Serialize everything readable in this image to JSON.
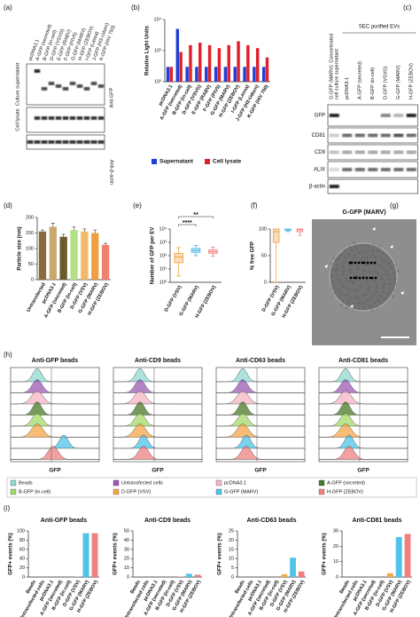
{
  "panel_labels": [
    "(a)",
    "(b)",
    "(c)",
    "(d)",
    "(e)",
    "(f)",
    "(g)",
    "(h)",
    "(i)"
  ],
  "blot_a": {
    "lanes": [
      "pcDNA3.1",
      "A-GFP (secreted)",
      "B-GFP (in-cell)",
      "D-GFP (VSVG)",
      "E-GFP (RABV)",
      "F-GFP (PIV5)",
      "G-GFP (MARV)",
      "H-GFP (ZEBOV)",
      "I-GFP (Lassa)",
      "J-GFP (H3-Udorn)",
      "K-GFP (HIV 750)"
    ],
    "rows": [
      "Culture supernatant",
      "Cell lysate"
    ],
    "antibodies": [
      "Anti-GFP",
      "Anti-β-actin"
    ]
  },
  "blot_c": {
    "lanes": [
      [
        "G-GFP (MARV): Concentrated",
        "cell culture supernatant"
      ],
      "pcDNA3.1",
      "A-GFP (secreted)",
      "B-GFP (in-cell)",
      "D-GFP (VSVG)",
      "G-GFP (MARV)",
      "H-GFP (ZEBOV)"
    ],
    "group": "SEC purified EVs",
    "rows": [
      "GFP",
      "CD81",
      "CD9",
      "ALIX",
      "β-actin"
    ]
  },
  "image_g": {
    "title": "G-GFP (MARV)"
  },
  "flow_cytometry": {
    "titles": [
      "Anti-GFP beads",
      "Anti-CD9 beads",
      "Anti-CD63 beads",
      "Anti-CD81 beads"
    ],
    "x_label": "GFP",
    "legend": [
      {
        "name": "Beads",
        "color": "#8fd9d0"
      },
      {
        "name": "Untransfected cells",
        "color": "#9b59b6"
      },
      {
        "name": "pcDNA3.1",
        "color": "#f4b6c2"
      },
      {
        "name": "A-GFP (secreted)",
        "color": "#4a7a2a"
      },
      {
        "name": "B-GFP (in-cell)",
        "color": "#a6d96a"
      },
      {
        "name": "D-GFP (VSV)",
        "color": "#f5a64a"
      },
      {
        "name": "G-GFP (MARV)",
        "color": "#4fc3e8"
      },
      {
        "name": "H-GFP (ZEBOV)",
        "color": "#f08080"
      }
    ]
  },
  "chart_data": [
    {
      "type": "bar",
      "y_label": "Relative Light Units",
      "log_scale": true,
      "categories": [
        "pcDNA3.1",
        "A-GFP (secreted)",
        "B-GFP (in-cell)",
        "D-GFP (VSVG)",
        "E-GFP (RABV)",
        "F-GFP (PIV5)",
        "G-GFP (MARV)",
        "H-GFP (ZEBOV)",
        "I-GFP (Lassa)",
        "J-GFP (H3-Udorn)",
        "K-GFP (HIV 750)"
      ],
      "series": [
        {
          "name": "Supernatant",
          "color": "#1f3fd6",
          "values": [
            300,
            5000,
            300,
            300,
            300,
            300,
            300,
            300,
            300,
            300,
            300
          ]
        },
        {
          "name": "Cell lysate",
          "color": "#e0202a",
          "values": [
            300,
            900,
            1500,
            1800,
            1500,
            1200,
            1500,
            2000,
            1500,
            1200,
            600
          ]
        }
      ],
      "ylim": [
        100,
        10000
      ],
      "yticks": [
        {
          "value": 100,
          "label": "10²"
        },
        {
          "value": 1000,
          "label": "10³"
        },
        {
          "value": 10000,
          "label": "10⁴"
        }
      ]
    },
    {
      "type": "bar",
      "y_label": "Particle size (nm)",
      "categories": [
        "Untransfected",
        "pcDNA3.1",
        "A-GFP (secreted)",
        "B-GFP (in-cell)",
        "D-GFP (VSV)",
        "G-GFP (MARV)",
        "H-GFP (ZEBOV)"
      ],
      "values": [
        155,
        170,
        138,
        160,
        155,
        150,
        112
      ],
      "errors": [
        5,
        12,
        8,
        10,
        8,
        10,
        5
      ],
      "colors": [
        "#8b6a3e",
        "#c9a96e",
        "#6b5a2a",
        "#b5e08a",
        "#f5b866",
        "#f0a040",
        "#f08070"
      ],
      "ylim": [
        0,
        200
      ],
      "yticks": [
        0,
        50,
        100,
        150,
        200
      ]
    },
    {
      "type": "box",
      "y_label": "Number of GFP per EV",
      "log_scale": true,
      "categories": [
        "D-GFP (VSV)",
        "G-GFP (MARV)",
        "H-GFP (ZEBOV)"
      ],
      "boxes": [
        {
          "min": 3,
          "q1": 30,
          "median": 80,
          "q3": 150,
          "max": 400
        },
        {
          "min": 100,
          "q1": 180,
          "median": 250,
          "q3": 350,
          "max": 600
        },
        {
          "min": 90,
          "q1": 150,
          "median": 200,
          "q3": 280,
          "max": 450
        }
      ],
      "colors": [
        "#f0a040",
        "#4fb3e8",
        "#f08080"
      ],
      "annotations": [
        "**",
        "****"
      ],
      "ylim": [
        1,
        10000
      ],
      "yticks": [
        {
          "value": 1,
          "label": "10⁰"
        },
        {
          "value": 10,
          "label": "10¹"
        },
        {
          "value": 100,
          "label": "10²"
        },
        {
          "value": 1000,
          "label": "10³"
        },
        {
          "value": 10000,
          "label": "10⁴"
        }
      ]
    },
    {
      "type": "box",
      "y_label": "% free GFP",
      "categories": [
        "D-GFP (VSV)",
        "G-GFP (MARV)",
        "H-GFP (ZEBOV)"
      ],
      "boxes": [
        {
          "min": 0,
          "q1": 75,
          "median": 95,
          "q3": 100,
          "max": 100
        },
        {
          "min": 95,
          "q1": 97,
          "median": 99,
          "q3": 100,
          "max": 100
        },
        {
          "min": 88,
          "q1": 95,
          "median": 99,
          "q3": 100,
          "max": 100
        }
      ],
      "colors": [
        "#f0a040",
        "#4fb3e8",
        "#f08080"
      ],
      "ylim": [
        0,
        100
      ],
      "yticks": [
        0,
        50,
        100
      ]
    },
    {
      "type": "bar",
      "title": "Anti-GFP beads",
      "y_label": "GFP+ events (%)",
      "categories": [
        "Beads",
        "Untransfected cells",
        "pcDNA3.1",
        "A-GFP (secreted)",
        "B-GFP (in-cell)",
        "D-GFP (VSV)",
        "G-GFP (MARV)",
        "H-GFP (ZEBOV)"
      ],
      "values": [
        0,
        0,
        0,
        0,
        0,
        0.5,
        95,
        95
      ],
      "colors": [
        "#8fd9d0",
        "#9b59b6",
        "#f4b6c2",
        "#4a7a2a",
        "#a6d96a",
        "#f5a64a",
        "#4fc3e8",
        "#f08080"
      ],
      "ylim": [
        0,
        100
      ],
      "yticks": [
        0,
        20,
        40,
        60,
        80,
        100
      ]
    },
    {
      "type": "bar",
      "title": "Anti-CD9 beads",
      "y_label": "GFP+ events (%)",
      "categories": [
        "Beads",
        "Untransfected cells",
        "pcDNA3.1",
        "A-GFP (secreted)",
        "B-GFP (in-cell)",
        "D-GFP (VSV)",
        "G-GFP (MARV)",
        "H-GFP (ZEBOV)"
      ],
      "values": [
        0,
        0,
        0,
        0,
        0,
        0.3,
        3.5,
        2.5
      ],
      "colors": [
        "#8fd9d0",
        "#9b59b6",
        "#f4b6c2",
        "#4a7a2a",
        "#a6d96a",
        "#f5a64a",
        "#4fc3e8",
        "#f08080"
      ],
      "ylim": [
        0,
        50
      ],
      "yticks": [
        0,
        10,
        20,
        30,
        40,
        50
      ]
    },
    {
      "type": "bar",
      "title": "Anti-CD63 beads",
      "y_label": "GFP+ events (%)",
      "categories": [
        "Beads",
        "Untransfected cells",
        "pcDNA3.1",
        "A-GFP (secreted)",
        "B-GFP (in-cell)",
        "D-GFP (VSV)",
        "G-GFP (MARV)",
        "H-GFP (ZEBOV)"
      ],
      "values": [
        0,
        0,
        0,
        0,
        0,
        1.5,
        10.5,
        3
      ],
      "colors": [
        "#8fd9d0",
        "#9b59b6",
        "#f4b6c2",
        "#4a7a2a",
        "#a6d96a",
        "#f5a64a",
        "#4fc3e8",
        "#f08080"
      ],
      "ylim": [
        0,
        25
      ],
      "yticks": [
        0,
        5,
        10,
        15,
        20,
        25
      ]
    },
    {
      "type": "bar",
      "title": "Anti-CD81 beads",
      "y_label": "GFP+ events (%)",
      "categories": [
        "Beads",
        "Untransfected cells",
        "pcDNA3.1",
        "A-GFP (secreted)",
        "B-GFP (in-cell)",
        "D-GFP (VSV)",
        "G-GFP (MARV)",
        "H-GFP (ZEBOV)"
      ],
      "values": [
        0,
        0,
        0,
        0,
        0,
        2.5,
        26,
        28
      ],
      "colors": [
        "#8fd9d0",
        "#9b59b6",
        "#f4b6c2",
        "#4a7a2a",
        "#a6d96a",
        "#f5a64a",
        "#4fc3e8",
        "#f08080"
      ],
      "ylim": [
        0,
        30
      ],
      "yticks": [
        0,
        10,
        20,
        30
      ]
    }
  ]
}
